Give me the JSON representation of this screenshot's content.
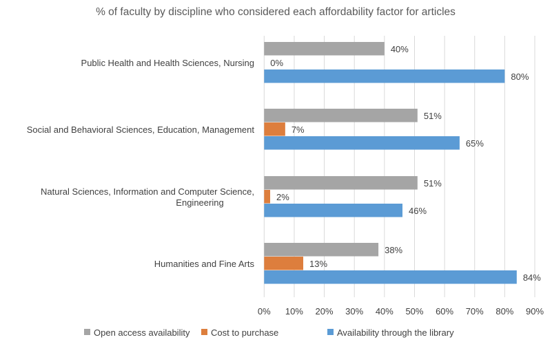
{
  "chart_data": {
    "type": "bar",
    "orientation": "horizontal",
    "title": "% of faculty by discipline who considered each affordability factor for articles",
    "categories": [
      [
        "Public Health and Health Sciences, Nursing"
      ],
      [
        "Social and Behavioral Sciences, Education, Management"
      ],
      [
        "Natural Sciences, Information and Computer Science,",
        "Engineering"
      ],
      [
        "Humanities and Fine Arts"
      ]
    ],
    "series": [
      {
        "name": "Open access availability",
        "color": "#A5A5A5",
        "values": [
          40,
          51,
          51,
          38
        ]
      },
      {
        "name": "Cost to purchase",
        "color": "#DD7E3D",
        "values": [
          0,
          7,
          2,
          13
        ]
      },
      {
        "name": "Availability through the library",
        "color": "#5B9BD5",
        "values": [
          80,
          65,
          46,
          84
        ]
      }
    ],
    "xlim": [
      0,
      90
    ],
    "xticks": [
      "0%",
      "10%",
      "20%",
      "30%",
      "40%",
      "50%",
      "60%",
      "70%",
      "80%",
      "90%"
    ],
    "grid": true,
    "legend": "bottom",
    "xlabel": "",
    "ylabel": ""
  }
}
